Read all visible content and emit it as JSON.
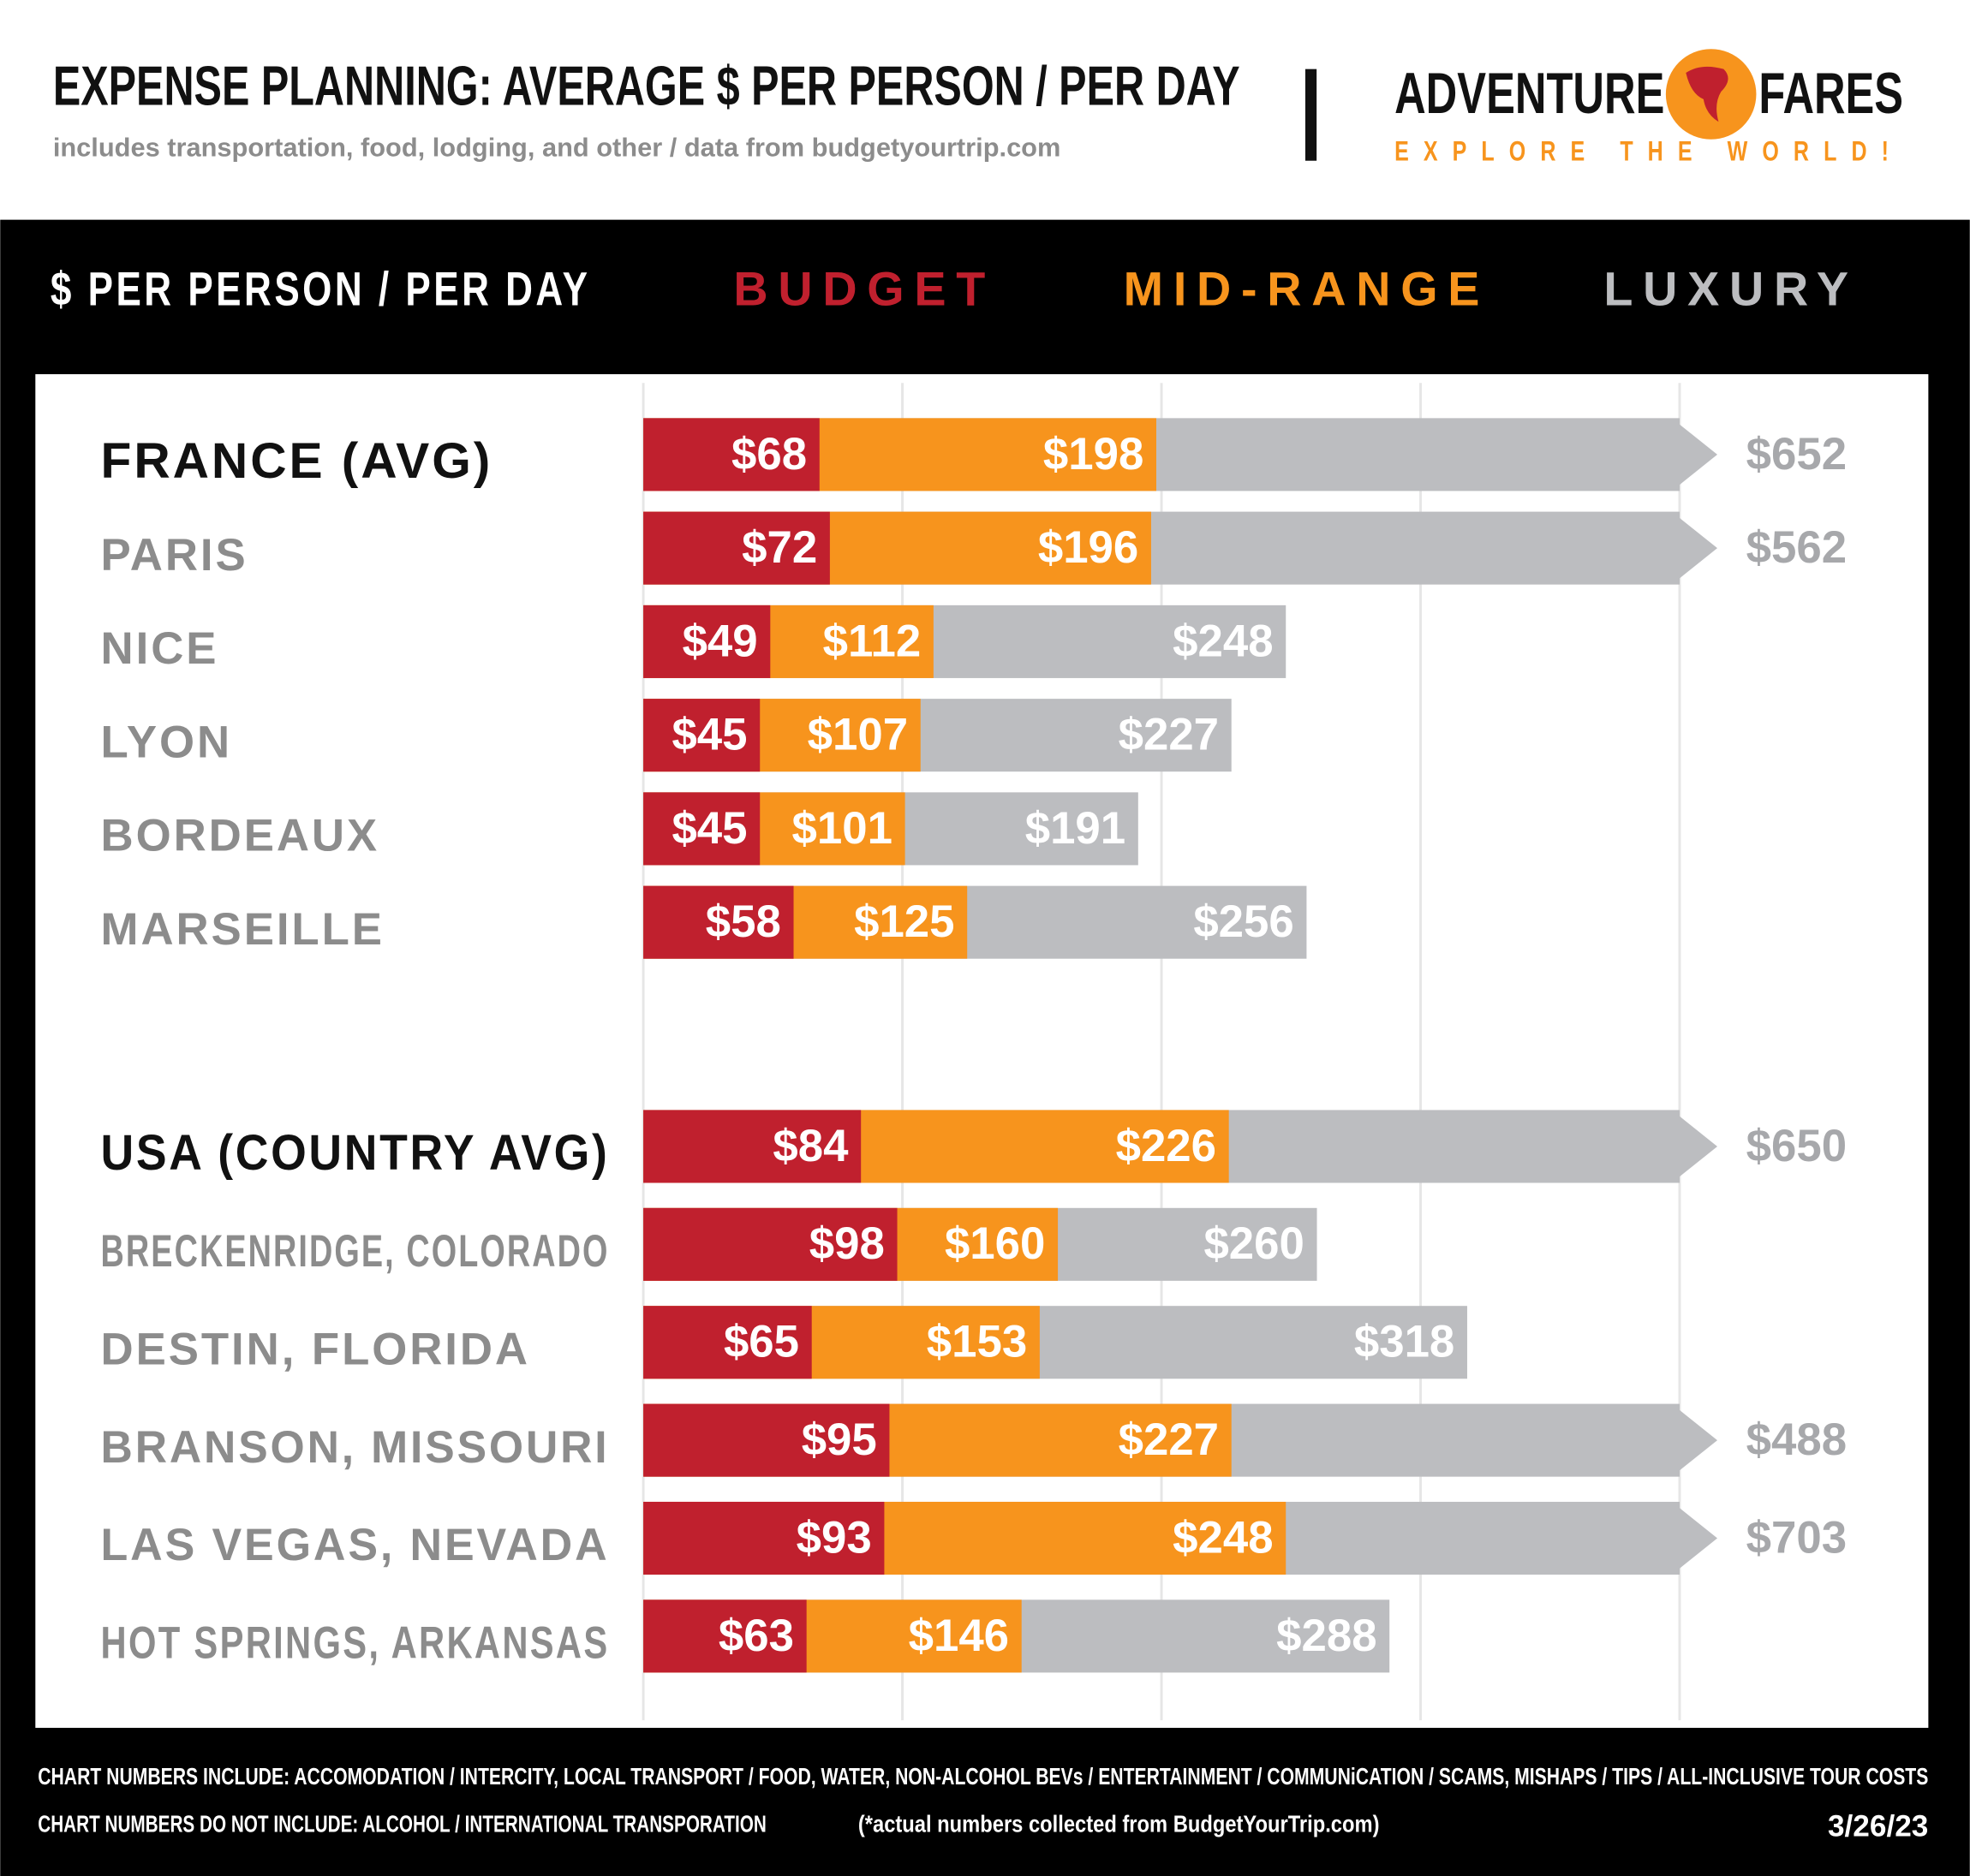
{
  "header": {
    "title": "EXPENSE PLANNING: AVERAGE $ PER PERSON / PER DAY",
    "subtitle": "includes transportation, food, lodging, and other / data from budgetyourtrip.com",
    "brand": [
      "ADVENTURE",
      "FARES"
    ],
    "tagline": "EXPLORE THE WORLD!"
  },
  "chart_data": {
    "type": "bar",
    "orientation": "horizontal",
    "overlap": true,
    "legend_title": "$ PER PERSON / PER DAY",
    "categories": [
      "FRANCE (AVG)",
      "PARIS",
      "NICE",
      "LYON",
      "BORDEAUX",
      "MARSEILLE",
      "USA (COUNTRY AVG)",
      "BRECKENRIDGE, COLORADO",
      "DESTIN, FLORIDA",
      "BRANSON, MISSOURI",
      "LAS VEGAS, NEVADA",
      "HOT SPRINGS, ARKANSAS"
    ],
    "series": [
      {
        "name": "BUDGET",
        "color": "#c0202e",
        "values": [
          68,
          72,
          49,
          45,
          45,
          58,
          84,
          98,
          65,
          95,
          93,
          63
        ],
        "value_labels": [
          "$68",
          "$72",
          "$49",
          "$45",
          "$45",
          "$58",
          "$84",
          "$98",
          "$65",
          "$95",
          "$93",
          "$63"
        ]
      },
      {
        "name": "MID-RANGE",
        "color": "#f7941d",
        "values": [
          198,
          196,
          112,
          107,
          101,
          125,
          226,
          160,
          153,
          227,
          248,
          146
        ],
        "value_labels": [
          "$198",
          "$196",
          "$112",
          "$107",
          "$101",
          "$125",
          "$226",
          "$160",
          "$153",
          "$227",
          "$248",
          "$146"
        ]
      },
      {
        "name": "LUXURY",
        "color": "#bcbdc0",
        "values": [
          652,
          562,
          248,
          227,
          191,
          256,
          650,
          260,
          318,
          488,
          703,
          288
        ],
        "value_labels": [
          "$652",
          "$562",
          "$248",
          "$227",
          "$191",
          "$256",
          "$650",
          "$260",
          "$318",
          "$488",
          "$703",
          "$288"
        ]
      }
    ],
    "xlim": [
      0,
      400
    ],
    "xticks": [
      0,
      100,
      200,
      300,
      400
    ],
    "grid": true
  },
  "footer": {
    "includes": "CHART NUMBERS INCLUDE:  ACCOMODATION / INTERCITY, LOCAL TRANSPORT / FOOD, WATER, NON-ALCOHOL BEVs / ENTERTAINMENT / COMMUNiCATION / SCAMS, MISHAPS / TIPS / ALL-INCLUSIVE TOUR COSTS",
    "excludes": "CHART NUMBERS DO NOT INCLUDE:  ALCOHOL / INTERNATIONAL TRANSPORATION",
    "source_note": "(*actual numbers collected from BudgetYourTrip.com)",
    "date": "3/26/23"
  }
}
